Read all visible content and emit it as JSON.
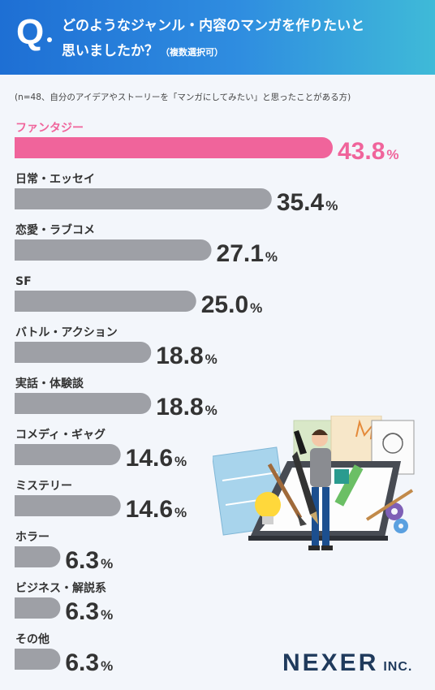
{
  "header": {
    "q_mark": "Q",
    "question_line1": "どのようなジャンル・内容のマンガを作りたいと",
    "question_line2": "思いましたか？",
    "question_note": "（複数選択可）"
  },
  "sample_note": "(n=48、自分のアイデアやストーリーを「マンガにしてみたい」と思ったことがある方)",
  "brand": {
    "name": "NEXER",
    "suffix": "INC."
  },
  "colors": {
    "highlight": "#f0649b",
    "bar": "#9ea0a6",
    "header_start": "#1e6fd4",
    "header_end": "#3fbad8"
  },
  "chart_data": {
    "type": "bar",
    "orientation": "horizontal",
    "unit": "%",
    "categories": [
      "ファンタジー",
      "日常・エッセイ",
      "恋愛・ラブコメ",
      "SF",
      "バトル・アクション",
      "実話・体験談",
      "コメディ・ギャグ",
      "ミステリー",
      "ホラー",
      "ビジネス・解説系",
      "その他"
    ],
    "values": [
      43.8,
      35.4,
      27.1,
      25.0,
      18.8,
      18.8,
      14.6,
      14.6,
      6.3,
      6.3,
      6.3
    ],
    "value_labels": [
      "43.8",
      "35.4",
      "27.1",
      "25.0",
      "18.8",
      "18.8",
      "14.6",
      "14.6",
      "6.3",
      "6.3",
      "6.3"
    ],
    "highlight_index": 0
  }
}
